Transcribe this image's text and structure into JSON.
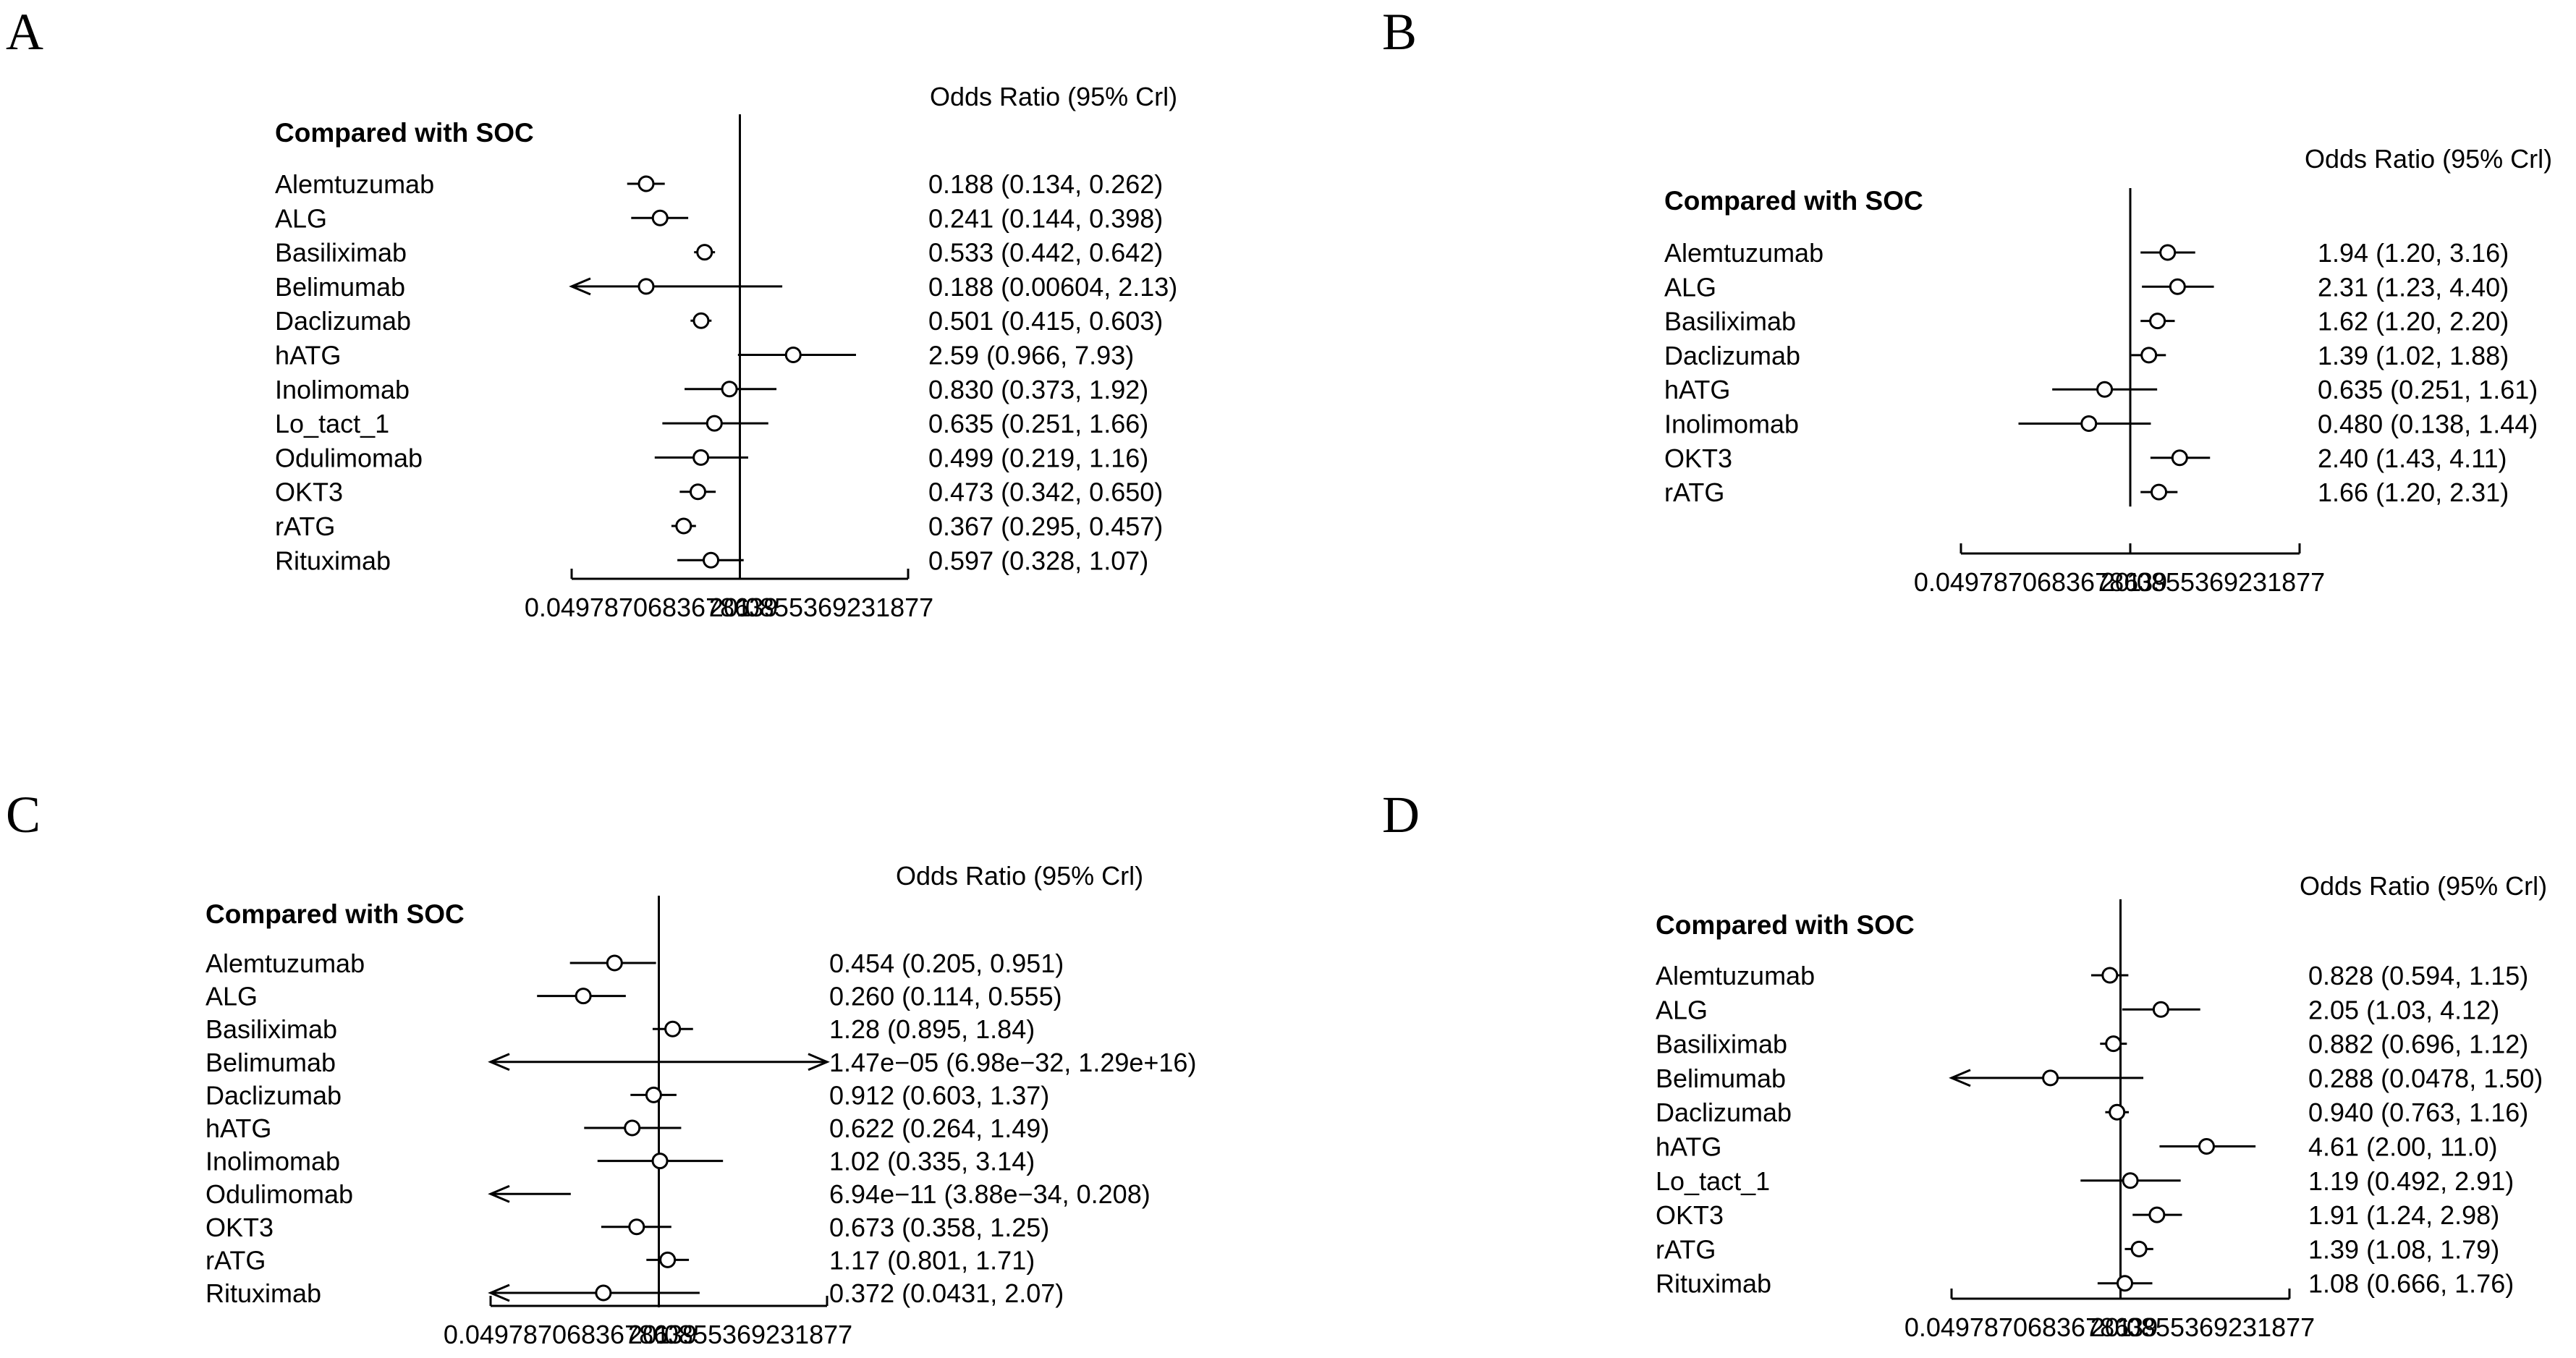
{
  "chart_data": [
    {
      "type": "forest",
      "panel": "A",
      "group_title": "Compared with SOC",
      "column_header": "Odds Ratio (95% Crl)",
      "scale": "log",
      "axis": {
        "min": 0.0497870683678639,
        "max": 20.0855369231877,
        "ref": 1,
        "tick_labels": [
          "0.0497870683678639",
          "1",
          "20.0855369231877"
        ]
      },
      "rows": [
        {
          "label": "Alemtuzumab",
          "or": 0.188,
          "lo": 0.134,
          "hi": 0.262,
          "text": "0.188 (0.134, 0.262)"
        },
        {
          "label": "ALG",
          "or": 0.241,
          "lo": 0.144,
          "hi": 0.398,
          "text": "0.241 (0.144, 0.398)"
        },
        {
          "label": "Basiliximab",
          "or": 0.533,
          "lo": 0.442,
          "hi": 0.642,
          "text": "0.533 (0.442, 0.642)"
        },
        {
          "label": "Belimumab",
          "or": 0.188,
          "lo": 0.00604,
          "hi": 2.13,
          "text": "0.188 (0.00604, 2.13)"
        },
        {
          "label": "Daclizumab",
          "or": 0.501,
          "lo": 0.415,
          "hi": 0.603,
          "text": "0.501 (0.415, 0.603)"
        },
        {
          "label": "hATG",
          "or": 2.59,
          "lo": 0.966,
          "hi": 7.93,
          "text": "2.59 (0.966, 7.93)"
        },
        {
          "label": "Inolimomab",
          "or": 0.83,
          "lo": 0.373,
          "hi": 1.92,
          "text": "0.830 (0.373, 1.92)"
        },
        {
          "label": "Lo_tact_1",
          "or": 0.635,
          "lo": 0.251,
          "hi": 1.66,
          "text": "0.635 (0.251, 1.66)"
        },
        {
          "label": "Odulimomab",
          "or": 0.499,
          "lo": 0.219,
          "hi": 1.16,
          "text": "0.499 (0.219, 1.16)"
        },
        {
          "label": "OKT3",
          "or": 0.473,
          "lo": 0.342,
          "hi": 0.65,
          "text": "0.473 (0.342, 0.650)"
        },
        {
          "label": "rATG",
          "or": 0.367,
          "lo": 0.295,
          "hi": 0.457,
          "text": "0.367 (0.295, 0.457)"
        },
        {
          "label": "Rituximab",
          "or": 0.597,
          "lo": 0.328,
          "hi": 1.07,
          "text": "0.597 (0.328, 1.07)"
        }
      ]
    },
    {
      "type": "forest",
      "panel": "B",
      "group_title": "Compared with SOC",
      "column_header": "Odds Ratio (95% Crl)",
      "scale": "log",
      "axis": {
        "min": 0.0497870683678639,
        "max": 20.0855369231877,
        "ref": 1,
        "tick_labels": [
          "0.0497870683678639",
          "1",
          "20.0855369231877"
        ]
      },
      "rows": [
        {
          "label": "Alemtuzumab",
          "or": 1.94,
          "lo": 1.2,
          "hi": 3.16,
          "text": "1.94 (1.20, 3.16)"
        },
        {
          "label": "ALG",
          "or": 2.31,
          "lo": 1.23,
          "hi": 4.4,
          "text": "2.31 (1.23, 4.40)"
        },
        {
          "label": "Basiliximab",
          "or": 1.62,
          "lo": 1.2,
          "hi": 2.2,
          "text": "1.62 (1.20, 2.20)"
        },
        {
          "label": "Daclizumab",
          "or": 1.39,
          "lo": 1.02,
          "hi": 1.88,
          "text": "1.39 (1.02, 1.88)"
        },
        {
          "label": "hATG",
          "or": 0.635,
          "lo": 0.251,
          "hi": 1.61,
          "text": "0.635 (0.251, 1.61)"
        },
        {
          "label": "Inolimomab",
          "or": 0.48,
          "lo": 0.138,
          "hi": 1.44,
          "text": "0.480 (0.138, 1.44)"
        },
        {
          "label": "OKT3",
          "or": 2.4,
          "lo": 1.43,
          "hi": 4.11,
          "text": "2.40 (1.43, 4.11)"
        },
        {
          "label": "rATG",
          "or": 1.66,
          "lo": 1.2,
          "hi": 2.31,
          "text": "1.66 (1.20, 2.31)"
        }
      ]
    },
    {
      "type": "forest",
      "panel": "C",
      "group_title": "Compared with SOC",
      "column_header": "Odds Ratio (95% Crl)",
      "scale": "log",
      "axis": {
        "min": 0.0497870683678639,
        "max": 20.0855369231877,
        "ref": 1,
        "tick_labels": [
          "0.0497870683678639",
          "1",
          "20.0855369231877"
        ]
      },
      "rows": [
        {
          "label": "Alemtuzumab",
          "or": 0.454,
          "lo": 0.205,
          "hi": 0.951,
          "text": "0.454 (0.205, 0.951)"
        },
        {
          "label": "ALG",
          "or": 0.26,
          "lo": 0.114,
          "hi": 0.555,
          "text": "0.260 (0.114, 0.555)"
        },
        {
          "label": "Basiliximab",
          "or": 1.28,
          "lo": 0.895,
          "hi": 1.84,
          "text": "1.28 (0.895, 1.84)"
        },
        {
          "label": "Belimumab",
          "or": 1.47e-05,
          "lo": 6.98e-32,
          "hi": 1.29e+16,
          "text": "1.47e−05 (6.98e−32, 1.29e+16)"
        },
        {
          "label": "Daclizumab",
          "or": 0.912,
          "lo": 0.603,
          "hi": 1.37,
          "text": "0.912 (0.603, 1.37)"
        },
        {
          "label": "hATG",
          "or": 0.622,
          "lo": 0.264,
          "hi": 1.49,
          "text": "0.622 (0.264, 1.49)"
        },
        {
          "label": "Inolimomab",
          "or": 1.02,
          "lo": 0.335,
          "hi": 3.14,
          "text": "1.02 (0.335, 3.14)"
        },
        {
          "label": "Odulimomab",
          "or": 6.94e-11,
          "lo": 3.88e-34,
          "hi": 0.208,
          "text": "6.94e−11 (3.88e−34, 0.208)"
        },
        {
          "label": "OKT3",
          "or": 0.673,
          "lo": 0.358,
          "hi": 1.25,
          "text": "0.673 (0.358, 1.25)"
        },
        {
          "label": "rATG",
          "or": 1.17,
          "lo": 0.801,
          "hi": 1.71,
          "text": "1.17 (0.801, 1.71)"
        },
        {
          "label": "Rituximab",
          "or": 0.372,
          "lo": 0.0431,
          "hi": 2.07,
          "text": "0.372 (0.0431, 2.07)"
        }
      ]
    },
    {
      "type": "forest",
      "panel": "D",
      "group_title": "Compared with SOC",
      "column_header": "Odds Ratio (95% Crl)",
      "scale": "log",
      "axis": {
        "min": 0.0497870683678639,
        "max": 20.0855369231877,
        "ref": 1,
        "tick_labels": [
          "0.0497870683678639",
          "1",
          "20.0855369231877"
        ]
      },
      "rows": [
        {
          "label": "Alemtuzumab",
          "or": 0.828,
          "lo": 0.594,
          "hi": 1.15,
          "text": "0.828 (0.594, 1.15)"
        },
        {
          "label": "ALG",
          "or": 2.05,
          "lo": 1.03,
          "hi": 4.12,
          "text": "2.05 (1.03, 4.12)"
        },
        {
          "label": "Basiliximab",
          "or": 0.882,
          "lo": 0.696,
          "hi": 1.12,
          "text": "0.882 (0.696, 1.12)"
        },
        {
          "label": "Belimumab",
          "or": 0.288,
          "lo": 0.0478,
          "hi": 1.5,
          "text": "0.288 (0.0478, 1.50)"
        },
        {
          "label": "Daclizumab",
          "or": 0.94,
          "lo": 0.763,
          "hi": 1.16,
          "text": "0.940 (0.763, 1.16)"
        },
        {
          "label": "hATG",
          "or": 4.61,
          "lo": 2.0,
          "hi": 11.0,
          "text": "4.61 (2.00, 11.0)"
        },
        {
          "label": "Lo_tact_1",
          "or": 1.19,
          "lo": 0.492,
          "hi": 2.91,
          "text": "1.19 (0.492, 2.91)"
        },
        {
          "label": "OKT3",
          "or": 1.91,
          "lo": 1.24,
          "hi": 2.98,
          "text": "1.91 (1.24, 2.98)"
        },
        {
          "label": "rATG",
          "or": 1.39,
          "lo": 1.08,
          "hi": 1.79,
          "text": "1.39 (1.08, 1.79)"
        },
        {
          "label": "Rituximab",
          "or": 1.08,
          "lo": 0.666,
          "hi": 1.76,
          "text": "1.08 (0.666, 1.76)"
        }
      ]
    }
  ]
}
